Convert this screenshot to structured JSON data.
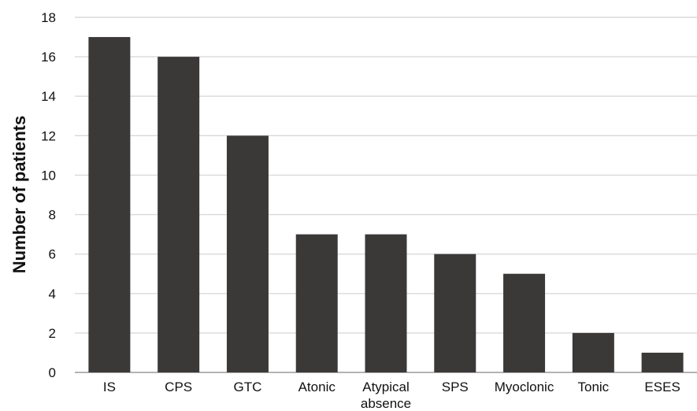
{
  "chart_data": {
    "type": "bar",
    "categories": [
      "IS",
      "CPS",
      "GTC",
      "Atonic",
      "Atypical\nabsence",
      "SPS",
      "Myoclonic",
      "Tonic",
      "ESES"
    ],
    "values": [
      17,
      16,
      12,
      7,
      7,
      6,
      5,
      2,
      1
    ],
    "xlabel": "",
    "ylabel": "Number of patients",
    "ylim": [
      0,
      18
    ],
    "yticks": [
      0,
      2,
      4,
      6,
      8,
      10,
      12,
      14,
      16,
      18
    ],
    "grid": true,
    "legend": "none",
    "bar_color": "#3b3838",
    "grid_color": "#d9d9d9"
  }
}
